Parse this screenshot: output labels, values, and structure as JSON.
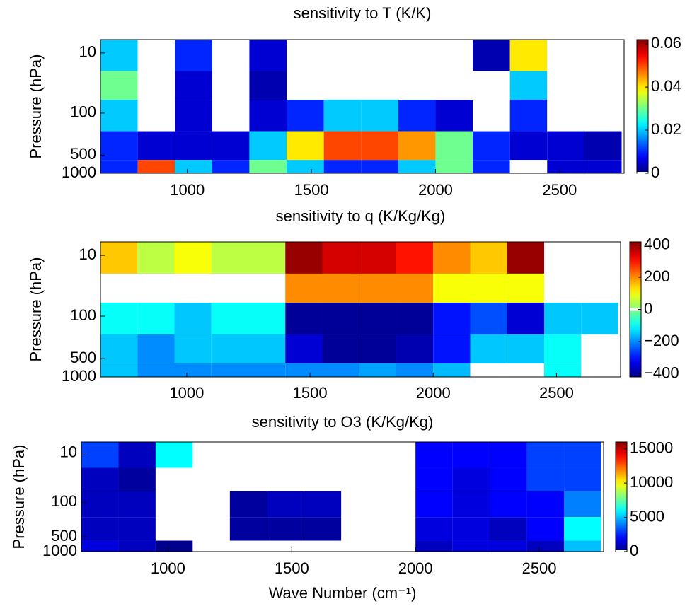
{
  "chart_data": [
    {
      "type": "heatmap",
      "title": "sensitivity to T (K/K)",
      "ylabel": "Pressure (hPa)",
      "colormap": "jet",
      "log_y": true,
      "white_value": 0,
      "x_edges": [
        650,
        800,
        950,
        1100,
        1250,
        1400,
        1550,
        1700,
        1850,
        2000,
        2150,
        2300,
        2450,
        2600,
        2750
      ],
      "y_edges": [
        6,
        20,
        60,
        200,
        600,
        1000
      ],
      "z": [
        [
          0.02,
          0,
          0.01,
          0,
          0.005,
          0,
          0,
          0,
          0,
          0,
          0.003,
          0.04,
          0,
          0
        ],
        [
          0.03,
          0,
          0.005,
          0,
          0.003,
          0,
          0,
          0,
          0,
          0,
          0,
          0.02,
          0,
          0
        ],
        [
          0.02,
          0,
          0.005,
          0,
          0.005,
          0.01,
          0.02,
          0.02,
          0.01,
          0.005,
          0,
          0.01,
          0,
          0
        ],
        [
          0.01,
          0.005,
          0.005,
          0.005,
          0.02,
          0.04,
          0.05,
          0.05,
          0.045,
          0.03,
          0.01,
          0.005,
          0.005,
          0.003
        ],
        [
          0.01,
          0.05,
          0.02,
          0.01,
          0.03,
          0.02,
          0.01,
          0.01,
          0.02,
          0.03,
          0.01,
          0,
          0.005,
          0.005
        ]
      ],
      "xlim": [
        650,
        2760
      ],
      "xticks": [
        1000,
        1500,
        2000,
        2500
      ],
      "ylim": [
        6,
        1000
      ],
      "yticks": [
        10,
        100,
        500,
        1000
      ],
      "clim": [
        0,
        0.062
      ],
      "cticks": [
        0,
        0.02,
        0.04,
        0.06
      ]
    },
    {
      "type": "heatmap",
      "title": "sensitivity to q (K/Kg/Kg)",
      "ylabel": "Pressure (hPa)",
      "colormap": "jet",
      "log_y": true,
      "white_value": 0,
      "x_edges": [
        650,
        800,
        950,
        1100,
        1250,
        1400,
        1550,
        1700,
        1850,
        2000,
        2150,
        2300,
        2450,
        2600,
        2750
      ],
      "y_edges": [
        6,
        20,
        60,
        200,
        600,
        1000
      ],
      "z": [
        [
          150,
          50,
          100,
          50,
          50,
          400,
          350,
          350,
          300,
          200,
          150,
          400,
          0,
          0
        ],
        [
          0,
          0,
          0,
          0,
          0,
          200,
          200,
          200,
          200,
          100,
          100,
          100,
          0,
          0
        ],
        [
          -100,
          -100,
          -150,
          -100,
          -100,
          -400,
          -400,
          -400,
          -400,
          -300,
          -250,
          -350,
          -150,
          -150
        ],
        [
          -150,
          -200,
          -150,
          -150,
          -150,
          -350,
          -400,
          -400,
          -380,
          -300,
          -150,
          -150,
          -100,
          0
        ],
        [
          -150,
          -200,
          -200,
          -200,
          -200,
          -200,
          -200,
          -180,
          -200,
          -160,
          0,
          0,
          -100,
          0
        ]
      ],
      "xlim": [
        650,
        2760
      ],
      "xticks": [
        1000,
        1500,
        2000,
        2500
      ],
      "ylim": [
        6,
        1000
      ],
      "yticks": [
        10,
        100,
        500,
        1000
      ],
      "clim": [
        -420,
        420
      ],
      "cticks": [
        {
          "value": -400,
          "label": "−400"
        },
        {
          "value": -200,
          "label": "−200"
        },
        0,
        200,
        400
      ]
    },
    {
      "type": "heatmap",
      "title": "sensitivity to O3 (K/Kg/Kg)",
      "ylabel": "Pressure (hPa)",
      "xlabel": "Wave Number (cm⁻¹)",
      "colormap": "jet",
      "log_y": true,
      "white_value": 0,
      "x_edges": [
        650,
        800,
        950,
        1100,
        1250,
        1400,
        1550,
        1700,
        1850,
        2000,
        2150,
        2300,
        2450,
        2600,
        2750
      ],
      "y_edges": [
        6,
        20,
        60,
        200,
        600,
        1000
      ],
      "z": [
        [
          3000,
          1000,
          6000,
          0,
          0,
          0,
          0,
          0,
          0,
          2000,
          2000,
          2000,
          3000,
          3000
        ],
        [
          1000,
          500,
          0,
          0,
          0,
          0,
          0,
          0,
          0,
          2000,
          1500,
          2000,
          3000,
          3000
        ],
        [
          1000,
          1000,
          0,
          0,
          500,
          1000,
          1000,
          0,
          0,
          2000,
          1500,
          2000,
          2000,
          4000
        ],
        [
          1000,
          1000,
          0,
          0,
          500,
          500,
          500,
          0,
          0,
          1500,
          1500,
          1000,
          2000,
          6000
        ],
        [
          1500,
          1000,
          200,
          0,
          0,
          0,
          0,
          0,
          0,
          1000,
          1500,
          1500,
          1000,
          5000
        ]
      ],
      "xlim": [
        650,
        2760
      ],
      "xticks": [
        1000,
        1500,
        2000,
        2500
      ],
      "ylim": [
        6,
        1000
      ],
      "yticks": [
        10,
        100,
        500,
        1000
      ],
      "clim": [
        0,
        16000
      ],
      "cticks": [
        0,
        5000,
        10000,
        15000
      ]
    }
  ]
}
